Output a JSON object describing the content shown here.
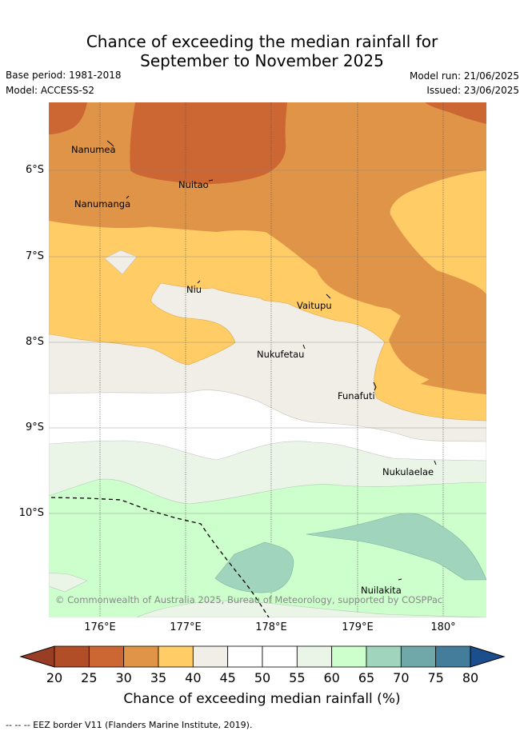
{
  "title_line1": "Chance of exceeding the median rainfall for",
  "title_line2": "September to November 2025",
  "meta": {
    "base_period": "Base period: 1981-2018",
    "model": "Model: ACCESS-S2",
    "model_run": "Model run: 21/06/2025",
    "issued": "Issued: 23/06/2025"
  },
  "map": {
    "lat_ticks": [
      "6°S",
      "7°S",
      "8°S",
      "9°S",
      "10°S"
    ],
    "lon_ticks": [
      "176°E",
      "177°E",
      "178°E",
      "179°E",
      "180°"
    ],
    "places": {
      "nanumea": "Nanumea",
      "nuitao": "Nuitao",
      "nanumanga": "Nanumanga",
      "niu": "Niu",
      "vaitupu": "Vaitupu",
      "nukufetau": "Nukufetau",
      "funafuti": "Funafuti",
      "nukulaelae": "Nukulaelae",
      "nuilakita": "Nuilakita"
    },
    "copyright": "© Commonwealth of Australia 2025, Bureau of Meteorology, supported by COSPPac"
  },
  "colorbar": {
    "labels": [
      "20",
      "25",
      "30",
      "35",
      "40",
      "45",
      "50",
      "55",
      "60",
      "65",
      "70",
      "75",
      "80"
    ],
    "colors": [
      "#b14e28",
      "#cc6633",
      "#e09448",
      "#ffcc66",
      "#f1ede7",
      "#ffffff",
      "#ffffff",
      "#eaf5e8",
      "#ccffcc",
      "#a0d4bc",
      "#70a8aa",
      "#447c9c"
    ],
    "low_extend_color": "#993d25",
    "high_extend_color": "#1a4e8c",
    "title": "Chance of exceeding median rainfall (%)"
  },
  "footnote": "-- -- -- EEZ border V11 (Flanders Marine Institute, 2019)."
}
